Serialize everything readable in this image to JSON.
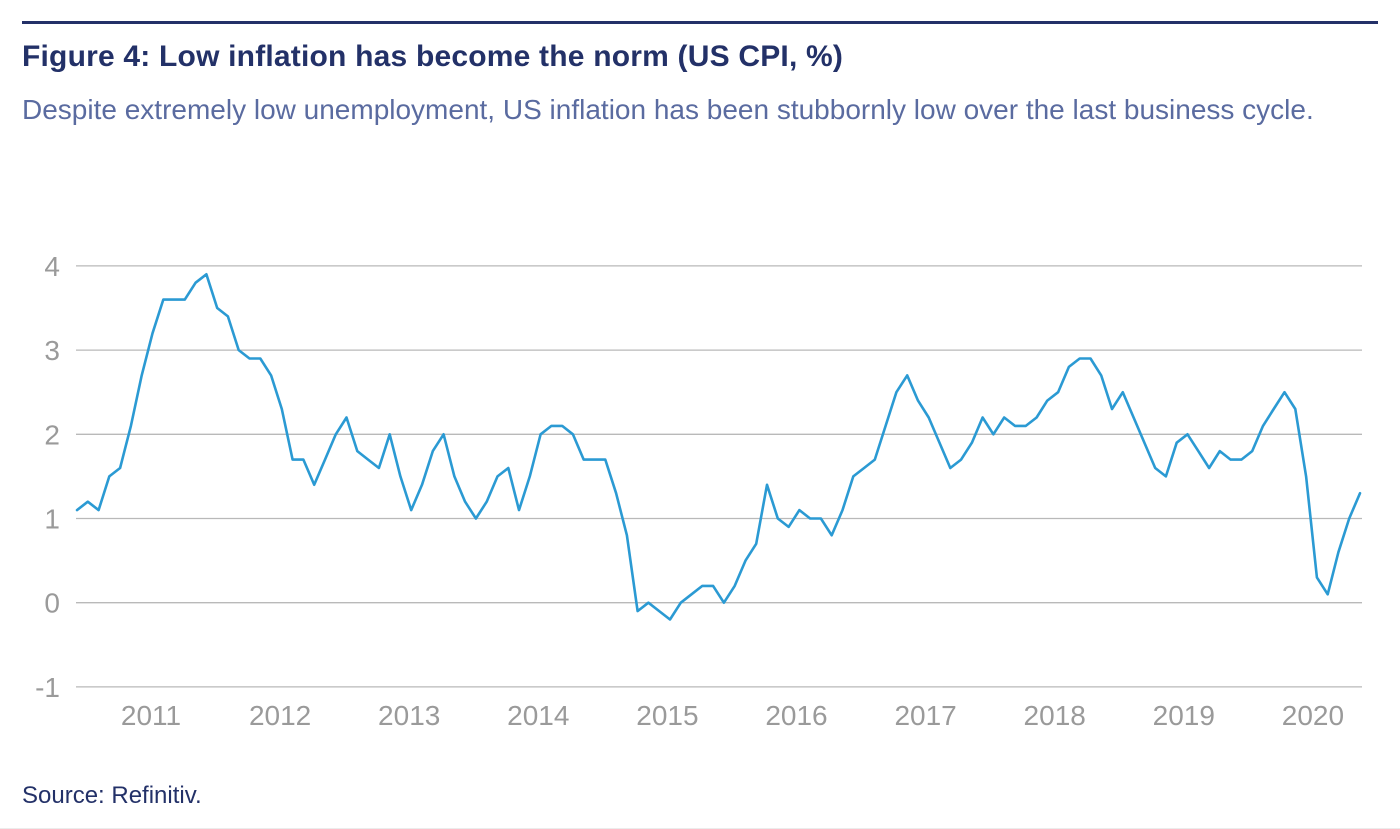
{
  "header": {
    "title": "Figure 4: Low inflation has become the norm (US CPI, %)",
    "subtitle": "Despite extremely low unemployment, US inflation has been stubbornly low over the last business cycle."
  },
  "footer": {
    "source": "Source: Refinitiv."
  },
  "colors": {
    "accent_navy": "#233168",
    "subtitle_blue": "#5A6BA0",
    "line_blue": "#2B9AD3",
    "grid_gray": "#b9b9b9",
    "tick_gray": "#9A9A9A"
  },
  "chart_data": {
    "type": "line",
    "title": "US CPI, % (year-over-year change, monthly)",
    "xlabel": "",
    "ylabel": "",
    "ylim": [
      -1,
      4
    ],
    "yticks": [
      4,
      3,
      2,
      1,
      0,
      -1
    ],
    "grid": "horizontal",
    "legend": "none",
    "x_start": "2010-09",
    "x_end": "2020-08",
    "frequency": "monthly",
    "categories": [
      "2011",
      "2012",
      "2013",
      "2014",
      "2015",
      "2016",
      "2017",
      "2018",
      "2019",
      "2020"
    ],
    "series": [
      {
        "name": "US CPI YoY %",
        "values": [
          1.1,
          1.2,
          1.1,
          1.5,
          1.6,
          2.1,
          2.7,
          3.2,
          3.6,
          3.6,
          3.6,
          3.8,
          3.9,
          3.5,
          3.4,
          3.0,
          2.9,
          2.9,
          2.7,
          2.3,
          1.7,
          1.7,
          1.4,
          1.7,
          2.0,
          2.2,
          1.8,
          1.7,
          1.6,
          2.0,
          1.5,
          1.1,
          1.4,
          1.8,
          2.0,
          1.5,
          1.2,
          1.0,
          1.2,
          1.5,
          1.6,
          1.1,
          1.5,
          2.0,
          2.1,
          2.1,
          2.0,
          1.7,
          1.7,
          1.7,
          1.3,
          0.8,
          -0.1,
          0.0,
          -0.1,
          -0.2,
          0.0,
          0.1,
          0.2,
          0.2,
          0.0,
          0.2,
          0.5,
          0.7,
          1.4,
          1.0,
          0.9,
          1.1,
          1.0,
          1.0,
          0.8,
          1.1,
          1.5,
          1.6,
          1.7,
          2.1,
          2.5,
          2.7,
          2.4,
          2.2,
          1.9,
          1.6,
          1.7,
          1.9,
          2.2,
          2.0,
          2.2,
          2.1,
          2.1,
          2.2,
          2.4,
          2.5,
          2.8,
          2.9,
          2.9,
          2.7,
          2.3,
          2.5,
          2.2,
          1.9,
          1.6,
          1.5,
          1.9,
          2.0,
          1.8,
          1.6,
          1.8,
          1.7,
          1.7,
          1.8,
          2.1,
          2.3,
          2.5,
          2.3,
          1.5,
          0.3,
          0.1,
          0.6,
          1.0,
          1.3
        ]
      }
    ]
  }
}
